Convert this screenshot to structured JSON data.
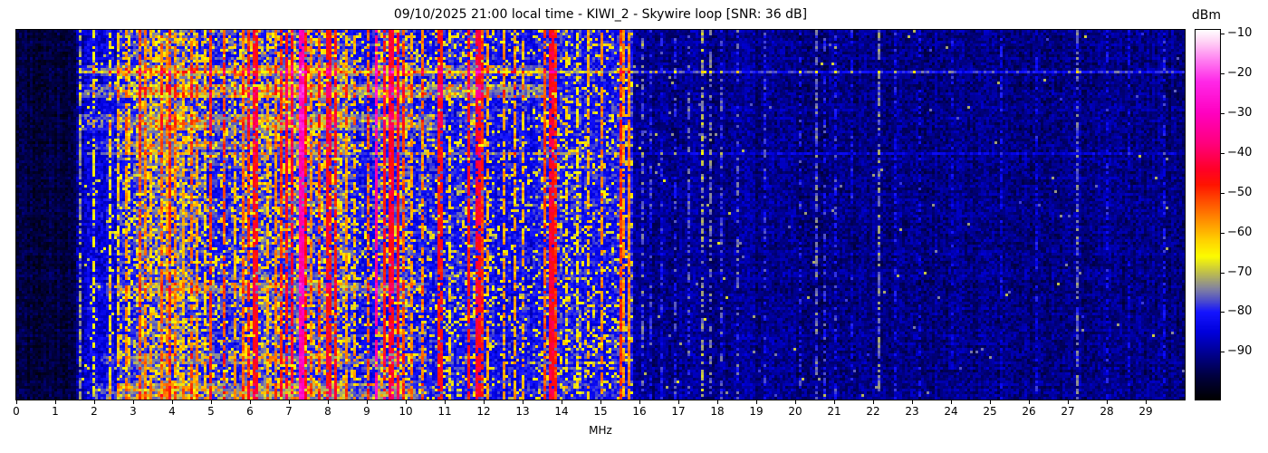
{
  "title": "09/10/2025 21:00 local time - KIWI_2 - Skywire loop [SNR: 36 dB]",
  "xlabel": "MHz",
  "x_ticks": [
    0,
    1,
    2,
    3,
    4,
    5,
    6,
    7,
    8,
    9,
    10,
    11,
    12,
    13,
    14,
    15,
    16,
    17,
    18,
    19,
    20,
    21,
    22,
    23,
    24,
    25,
    26,
    27,
    28,
    29
  ],
  "colorbar": {
    "label": "dBm",
    "ticks": [
      -10,
      -20,
      -30,
      -40,
      -50,
      -60,
      -70,
      -80,
      -90
    ]
  },
  "chart_data": {
    "type": "heatmap",
    "subtype": "radio-spectrogram-waterfall",
    "title": "09/10/2025 21:00 local time - KIWI_2 - Skywire loop [SNR: 36 dB]",
    "station": "KIWI_2",
    "antenna": "Skywire loop",
    "snr_db": 36,
    "datetime_label": "09/10/2025 21:00 local time",
    "xlabel": "MHz",
    "x_range_mhz": [
      0,
      30
    ],
    "x_tick_step_mhz": 1,
    "y_axis": "time (no tick labels shown)",
    "colorbar_label": "dBm",
    "colorbar_ticks": [
      -10,
      -20,
      -30,
      -40,
      -50,
      -60,
      -70,
      -80,
      -90
    ],
    "value_range_dbm": [
      -102,
      -9
    ],
    "colormap_stops": [
      [
        -9,
        "#ffffff"
      ],
      [
        -12,
        "#ffd2f5"
      ],
      [
        -17,
        "#ff78f0"
      ],
      [
        -22,
        "#ff28e8"
      ],
      [
        -30,
        "#ff00c0"
      ],
      [
        -38,
        "#ff0078"
      ],
      [
        -44,
        "#ff0028"
      ],
      [
        -48,
        "#ff1400"
      ],
      [
        -53,
        "#ff5a00"
      ],
      [
        -58,
        "#ff9c00"
      ],
      [
        -62,
        "#ffd200"
      ],
      [
        -66,
        "#fcfc00"
      ],
      [
        -70,
        "#c0c04a"
      ],
      [
        -74,
        "#84849e"
      ],
      [
        -77,
        "#5050c8"
      ],
      [
        -80,
        "#1414ff"
      ],
      [
        -85,
        "#0000dc"
      ],
      [
        -90,
        "#000096"
      ],
      [
        -96,
        "#000040"
      ],
      [
        -102,
        "#000000"
      ]
    ],
    "noise_bands_format": "[f_start_mhz, f_end_mhz, floor_dbm, jitter_db, speckle_prob, speckle_dbm]",
    "noise_bands": [
      [
        0.0,
        1.55,
        -96,
        3,
        0.0,
        -80
      ],
      [
        1.55,
        1.75,
        -88,
        5,
        0.01,
        -70
      ],
      [
        1.75,
        2.55,
        -84,
        5,
        0.04,
        -68
      ],
      [
        2.55,
        3.1,
        -80,
        5,
        0.14,
        -66
      ],
      [
        3.1,
        4.7,
        -77,
        5,
        0.3,
        -63
      ],
      [
        4.7,
        5.75,
        -80,
        5,
        0.18,
        -65
      ],
      [
        5.75,
        6.35,
        -78,
        5,
        0.26,
        -64
      ],
      [
        6.35,
        8.5,
        -78,
        5,
        0.26,
        -63
      ],
      [
        8.5,
        9.3,
        -81,
        5,
        0.13,
        -66
      ],
      [
        9.3,
        10.1,
        -78,
        5,
        0.25,
        -64
      ],
      [
        10.1,
        11.4,
        -81,
        5,
        0.13,
        -66
      ],
      [
        11.4,
        12.3,
        -80,
        5,
        0.17,
        -65
      ],
      [
        12.3,
        13.4,
        -82,
        5,
        0.1,
        -66
      ],
      [
        13.4,
        14.5,
        -80,
        5,
        0.16,
        -65
      ],
      [
        14.5,
        15.85,
        -81,
        5,
        0.15,
        -65
      ],
      [
        15.85,
        19.0,
        -90,
        4,
        0.006,
        -72
      ],
      [
        19.0,
        30.0,
        -91,
        4,
        0.004,
        -74
      ]
    ],
    "carriers_format": "[freq_mhz, level_dbm, width_bins, dropout_prob]",
    "carriers": [
      [
        1.62,
        -73,
        1,
        0.3
      ],
      [
        2.02,
        -66,
        1,
        0.45
      ],
      [
        2.44,
        -64,
        1,
        0.3
      ],
      [
        2.6,
        -62,
        1,
        0.35
      ],
      [
        2.8,
        -58,
        1,
        0.3
      ],
      [
        2.92,
        -64,
        1,
        0.4
      ],
      [
        3.2,
        -52,
        1,
        0.2
      ],
      [
        3.33,
        -56,
        1,
        0.3
      ],
      [
        3.48,
        -60,
        1,
        0.35
      ],
      [
        3.7,
        -54,
        1,
        0.25
      ],
      [
        3.85,
        -58,
        1,
        0.3
      ],
      [
        3.95,
        -50,
        1,
        0.15
      ],
      [
        4.1,
        -56,
        1,
        0.3
      ],
      [
        4.3,
        -60,
        1,
        0.35
      ],
      [
        4.47,
        -54,
        1,
        0.25
      ],
      [
        4.65,
        -58,
        1,
        0.3
      ],
      [
        4.85,
        -62,
        1,
        0.35
      ],
      [
        5.0,
        -50,
        1,
        0.2
      ],
      [
        5.33,
        -52,
        1,
        0.25
      ],
      [
        5.6,
        -60,
        1,
        0.3
      ],
      [
        5.8,
        -54,
        1,
        0.25
      ],
      [
        5.95,
        -50,
        1,
        0.2
      ],
      [
        6.07,
        -46,
        2,
        0.15
      ],
      [
        6.18,
        -52,
        1,
        0.2
      ],
      [
        6.45,
        -60,
        1,
        0.35
      ],
      [
        6.65,
        -56,
        1,
        0.3
      ],
      [
        6.8,
        -50,
        1,
        0.2
      ],
      [
        6.95,
        -46,
        1,
        0.15
      ],
      [
        7.1,
        -45,
        1,
        0.12
      ],
      [
        7.3,
        -32,
        2,
        0.05
      ],
      [
        7.42,
        -48,
        1,
        0.2
      ],
      [
        7.6,
        -56,
        1,
        0.3
      ],
      [
        7.8,
        -52,
        1,
        0.25
      ],
      [
        8.0,
        -46,
        2,
        0.12
      ],
      [
        8.2,
        -48,
        1,
        0.15
      ],
      [
        8.45,
        -58,
        1,
        0.3
      ],
      [
        8.7,
        -60,
        1,
        0.35
      ],
      [
        9.05,
        -54,
        1,
        0.3
      ],
      [
        9.25,
        -34,
        1,
        0.1
      ],
      [
        9.45,
        -46,
        1,
        0.12
      ],
      [
        9.6,
        -44,
        2,
        0.1
      ],
      [
        9.78,
        -46,
        1,
        0.12
      ],
      [
        9.95,
        -52,
        1,
        0.2
      ],
      [
        10.15,
        -58,
        1,
        0.3
      ],
      [
        10.4,
        -56,
        1,
        0.3
      ],
      [
        10.85,
        -47,
        2,
        0.15
      ],
      [
        11.1,
        -62,
        1,
        0.4
      ],
      [
        11.63,
        -47,
        1,
        0.15
      ],
      [
        11.8,
        -44,
        2,
        0.12
      ],
      [
        11.95,
        -50,
        1,
        0.2
      ],
      [
        12.1,
        -58,
        1,
        0.3
      ],
      [
        12.55,
        -58,
        1,
        0.3
      ],
      [
        12.8,
        -58,
        1,
        0.35
      ],
      [
        13.0,
        -60,
        1,
        0.35
      ],
      [
        13.58,
        -52,
        1,
        0.2
      ],
      [
        13.7,
        -44,
        2,
        0.08
      ],
      [
        13.82,
        -50,
        1,
        0.2
      ],
      [
        14.1,
        -62,
        1,
        0.4
      ],
      [
        14.4,
        -64,
        1,
        0.45
      ],
      [
        14.7,
        -60,
        1,
        0.35
      ],
      [
        15.0,
        -56,
        1,
        0.3
      ],
      [
        15.5,
        -50,
        1,
        0.15
      ],
      [
        15.6,
        -58,
        1,
        0.3
      ],
      [
        15.74,
        -56,
        1,
        0.05
      ],
      [
        16.05,
        -76,
        1,
        0.5
      ],
      [
        16.3,
        -79,
        1,
        0.55
      ],
      [
        16.6,
        -80,
        1,
        0.55
      ],
      [
        16.9,
        -79,
        1,
        0.55
      ],
      [
        17.3,
        -77,
        1,
        0.5
      ],
      [
        17.62,
        -72,
        1,
        0.45
      ],
      [
        17.85,
        -75,
        1,
        0.5
      ],
      [
        18.1,
        -78,
        1,
        0.55
      ],
      [
        18.5,
        -77,
        1,
        0.5
      ],
      [
        19.2,
        -80,
        1,
        0.6
      ],
      [
        20.1,
        -80,
        1,
        0.6
      ],
      [
        20.55,
        -76,
        1,
        0.4
      ],
      [
        20.75,
        -79,
        1,
        0.55
      ],
      [
        21.0,
        -80,
        1,
        0.5
      ],
      [
        21.45,
        -82,
        1,
        0.6
      ],
      [
        22.15,
        -75,
        1,
        0.35
      ],
      [
        22.6,
        -82,
        1,
        0.6
      ],
      [
        23.2,
        -83,
        1,
        0.65
      ],
      [
        24.0,
        -83,
        1,
        0.65
      ],
      [
        25.3,
        -83,
        1,
        0.6
      ],
      [
        26.2,
        -82,
        1,
        0.6
      ],
      [
        27.25,
        -76,
        1,
        0.35
      ],
      [
        28.0,
        -82,
        1,
        0.6
      ],
      [
        28.6,
        -84,
        1,
        0.65
      ],
      [
        29.5,
        -81,
        1,
        0.5
      ]
    ],
    "time_bursts_format": "[t_frac_start, t_frac_end, f_start_mhz, f_end_mhz, boost_db]",
    "time_bursts": [
      [
        0.09,
        0.12,
        1.6,
        13.5,
        6
      ],
      [
        0.145,
        0.18,
        1.6,
        13.5,
        8
      ],
      [
        0.225,
        0.265,
        1.6,
        11.0,
        6
      ],
      [
        0.3,
        0.32,
        2.0,
        9.0,
        4
      ],
      [
        0.68,
        0.71,
        2.0,
        10.5,
        5
      ],
      [
        0.87,
        0.9,
        2.0,
        10.5,
        4
      ],
      [
        0.955,
        1.0,
        2.0,
        10.5,
        5
      ]
    ],
    "time_streaks_format": "[t_frac, boost_db] full-width bright rows",
    "time_streaks": [
      [
        0.113,
        10
      ],
      [
        0.328,
        5
      ]
    ]
  }
}
